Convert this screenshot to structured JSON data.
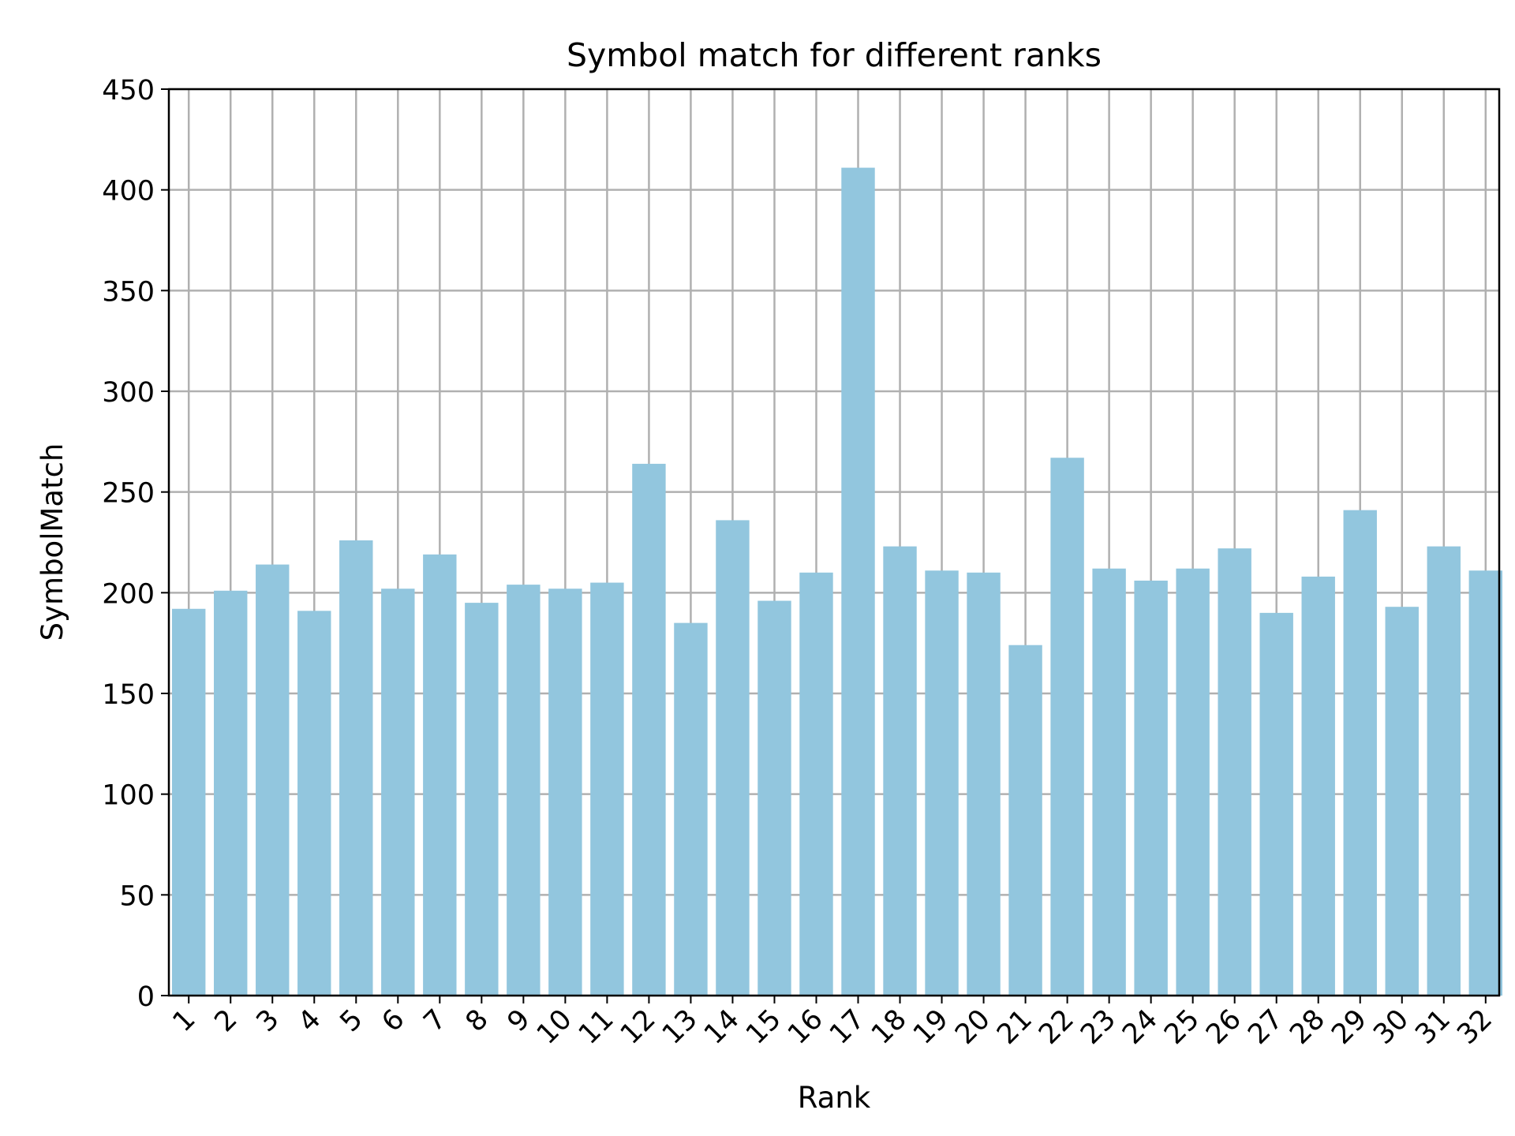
{
  "chart_data": {
    "type": "bar",
    "title": "Symbol match for different ranks",
    "xlabel": "Rank",
    "ylabel": "SymbolMatch",
    "categories": [
      "1",
      "2",
      "3",
      "4",
      "5",
      "6",
      "7",
      "8",
      "9",
      "10",
      "11",
      "12",
      "13",
      "14",
      "15",
      "16",
      "17",
      "18",
      "19",
      "20",
      "21",
      "22",
      "23",
      "24",
      "25",
      "26",
      "27",
      "28",
      "29",
      "30",
      "31",
      "32"
    ],
    "values": [
      192,
      201,
      214,
      191,
      226,
      202,
      219,
      195,
      204,
      202,
      205,
      264,
      185,
      236,
      196,
      210,
      411,
      223,
      211,
      210,
      174,
      267,
      212,
      206,
      212,
      222,
      190,
      208,
      241,
      193,
      223,
      211
    ],
    "ylim": [
      0,
      450
    ],
    "yticks": [
      0,
      50,
      100,
      150,
      200,
      250,
      300,
      350,
      400,
      450
    ],
    "grid": true,
    "bar_color": "#92c6de",
    "grid_color": "#b0b0b0"
  }
}
